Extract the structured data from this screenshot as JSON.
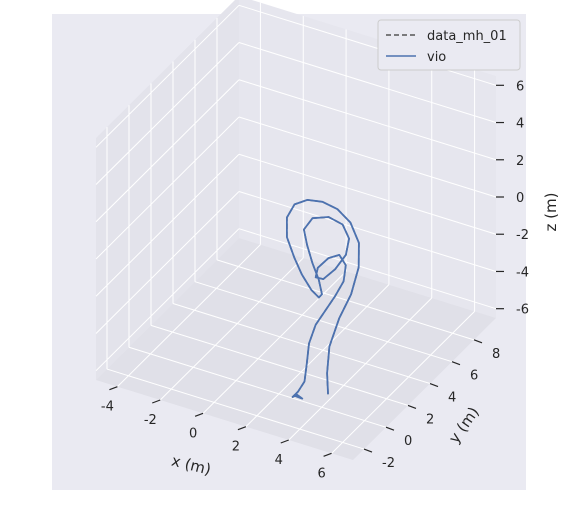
{
  "chart_data": {
    "type": "line",
    "projection": "3d",
    "title": "",
    "xlabel": "x (m)",
    "ylabel": "y (m)",
    "zlabel": "z (m)",
    "x_ticks": [
      "-4",
      "-2",
      "0",
      "2",
      "4",
      "6"
    ],
    "y_ticks": [
      "-2",
      "0",
      "2",
      "4",
      "6",
      "8"
    ],
    "z_ticks": [
      "-6",
      "-4",
      "-2",
      "0",
      "2",
      "4",
      "6"
    ],
    "xlim": [
      -5,
      7
    ],
    "ylim": [
      -3,
      10
    ],
    "zlim": [
      -6.5,
      6.5
    ],
    "grid": true,
    "legend_position": "top-right",
    "series": [
      {
        "name": "data_mh_01",
        "style": "dashed",
        "color": "#555555",
        "points": [
          [
            4.6,
            -0.6,
            -5.2
          ],
          [
            4.3,
            -0.1,
            -4.5
          ],
          [
            4.1,
            0.5,
            -3.5
          ],
          [
            4.3,
            1.0,
            -2.2
          ],
          [
            4.6,
            1.5,
            -1.1
          ],
          [
            4.7,
            2.0,
            0.1
          ],
          [
            4.5,
            2.4,
            1.1
          ],
          [
            4.0,
            2.6,
            1.9
          ],
          [
            3.4,
            2.6,
            2.4
          ],
          [
            2.8,
            2.4,
            2.7
          ],
          [
            2.2,
            2.2,
            2.7
          ],
          [
            1.7,
            2.0,
            2.4
          ],
          [
            1.5,
            1.7,
            1.8
          ],
          [
            1.6,
            1.5,
            0.9
          ],
          [
            2.0,
            1.4,
            0.0
          ],
          [
            2.4,
            1.3,
            -0.7
          ],
          [
            2.9,
            1.2,
            -1.3
          ],
          [
            3.3,
            1.1,
            -1.5
          ],
          [
            3.5,
            1.0,
            -1.2
          ],
          [
            3.4,
            0.9,
            -0.4
          ],
          [
            3.1,
            0.9,
            0.4
          ],
          [
            2.8,
            1.0,
            1.2
          ],
          [
            2.6,
            1.1,
            1.9
          ],
          [
            2.9,
            1.3,
            2.5
          ],
          [
            3.5,
            1.6,
            2.6
          ],
          [
            4.0,
            1.9,
            2.2
          ],
          [
            4.2,
            2.1,
            1.4
          ],
          [
            4.0,
            2.2,
            0.4
          ],
          [
            3.6,
            2.0,
            -0.4
          ],
          [
            3.2,
            1.7,
            -0.9
          ],
          [
            3.0,
            1.4,
            -0.7
          ],
          [
            3.2,
            1.2,
            0.0
          ],
          [
            3.7,
            1.2,
            0.7
          ],
          [
            4.1,
            1.4,
            0.9
          ],
          [
            4.3,
            1.6,
            0.3
          ],
          [
            4.2,
            1.6,
            -0.6
          ],
          [
            3.9,
            1.4,
            -1.4
          ],
          [
            3.6,
            1.1,
            -2.1
          ],
          [
            3.3,
            0.8,
            -2.8
          ],
          [
            3.2,
            0.4,
            -3.6
          ],
          [
            3.3,
            0.0,
            -4.4
          ],
          [
            3.4,
            -0.4,
            -5.1
          ],
          [
            3.2,
            -0.6,
            -5.6
          ],
          [
            3.0,
            -0.7,
            -5.9
          ],
          [
            3.2,
            -0.7,
            -5.7
          ],
          [
            3.4,
            -0.6,
            -5.9
          ],
          [
            3.1,
            -0.7,
            -5.8
          ]
        ]
      },
      {
        "name": "vio",
        "style": "solid",
        "color": "#4c72b0",
        "points": [
          [
            4.6,
            -0.6,
            -5.2
          ],
          [
            4.3,
            -0.1,
            -4.5
          ],
          [
            4.1,
            0.5,
            -3.5
          ],
          [
            4.3,
            1.0,
            -2.2
          ],
          [
            4.6,
            1.5,
            -1.1
          ],
          [
            4.7,
            2.0,
            0.1
          ],
          [
            4.5,
            2.4,
            1.1
          ],
          [
            4.0,
            2.6,
            1.9
          ],
          [
            3.4,
            2.6,
            2.4
          ],
          [
            2.8,
            2.4,
            2.7
          ],
          [
            2.2,
            2.2,
            2.7
          ],
          [
            1.7,
            2.0,
            2.4
          ],
          [
            1.5,
            1.7,
            1.8
          ],
          [
            1.6,
            1.5,
            0.9
          ],
          [
            2.0,
            1.4,
            0.0
          ],
          [
            2.4,
            1.3,
            -0.7
          ],
          [
            2.9,
            1.2,
            -1.3
          ],
          [
            3.3,
            1.1,
            -1.5
          ],
          [
            3.5,
            1.0,
            -1.2
          ],
          [
            3.4,
            0.9,
            -0.4
          ],
          [
            3.1,
            0.9,
            0.4
          ],
          [
            2.8,
            1.0,
            1.2
          ],
          [
            2.6,
            1.1,
            1.9
          ],
          [
            2.9,
            1.3,
            2.5
          ],
          [
            3.5,
            1.6,
            2.6
          ],
          [
            4.0,
            1.9,
            2.2
          ],
          [
            4.2,
            2.1,
            1.4
          ],
          [
            4.0,
            2.2,
            0.4
          ],
          [
            3.6,
            2.0,
            -0.4
          ],
          [
            3.2,
            1.7,
            -0.9
          ],
          [
            3.0,
            1.4,
            -0.7
          ],
          [
            3.2,
            1.2,
            0.0
          ],
          [
            3.7,
            1.2,
            0.7
          ],
          [
            4.1,
            1.4,
            0.9
          ],
          [
            4.3,
            1.6,
            0.3
          ],
          [
            4.2,
            1.6,
            -0.6
          ],
          [
            3.9,
            1.4,
            -1.4
          ],
          [
            3.6,
            1.1,
            -2.1
          ],
          [
            3.3,
            0.8,
            -2.8
          ],
          [
            3.2,
            0.4,
            -3.6
          ],
          [
            3.3,
            0.0,
            -4.4
          ],
          [
            3.4,
            -0.4,
            -5.1
          ],
          [
            3.2,
            -0.6,
            -5.6
          ],
          [
            3.0,
            -0.7,
            -5.9
          ],
          [
            3.2,
            -0.7,
            -5.7
          ],
          [
            3.4,
            -0.6,
            -5.9
          ],
          [
            3.1,
            -0.7,
            -5.8
          ]
        ]
      }
    ]
  },
  "colors": {
    "panel_background": "#eaeaf2",
    "pane_left": "#e3e3eb",
    "pane_back": "#e6e6ee",
    "pane_floor": "#e0e0e8",
    "grid": "#ffffff",
    "text": "#262626"
  }
}
